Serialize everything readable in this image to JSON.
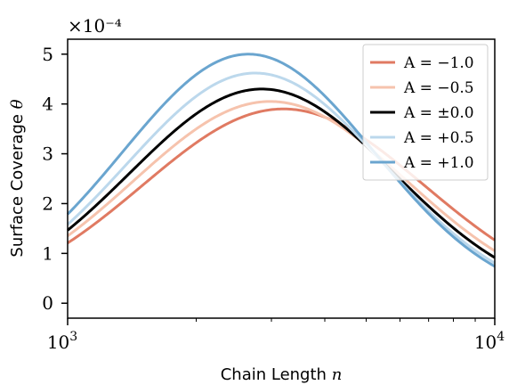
{
  "chart_data": {
    "type": "line",
    "xscale": "log",
    "xlim": [
      1000,
      10000
    ],
    "ylim": [
      -0.3,
      5.3
    ],
    "y_multiplier": "×10⁻⁴",
    "xlabel_text": "Chain Length",
    "xlabel_var": "n",
    "ylabel_text": "Surface Coverage",
    "ylabel_var": "θ",
    "x_ticks": [
      {
        "value": 1000,
        "base": "10",
        "exp": "3"
      },
      {
        "value": 10000,
        "base": "10",
        "exp": "4"
      }
    ],
    "y_ticks": [
      {
        "value": 0,
        "label": "0"
      },
      {
        "value": 1,
        "label": "1"
      },
      {
        "value": 2,
        "label": "2"
      },
      {
        "value": 3,
        "label": "3"
      },
      {
        "value": 4,
        "label": "4"
      },
      {
        "value": 5,
        "label": "5"
      }
    ],
    "legend_position": "top-right",
    "grid": false,
    "series": [
      {
        "name": "A = −1.0",
        "color": "#e07a62",
        "peak_x": 3200,
        "peak_y": 3.9,
        "sigma": 0.33
      },
      {
        "name": "A = −0.5",
        "color": "#f6c3ad",
        "peak_x": 2980,
        "peak_y": 4.05,
        "sigma": 0.32
      },
      {
        "name": "A = ±0.0",
        "color": "#000000",
        "peak_x": 2850,
        "peak_y": 4.3,
        "sigma": 0.31
      },
      {
        "name": "A = +0.5",
        "color": "#bcd8ec",
        "peak_x": 2750,
        "peak_y": 4.62,
        "sigma": 0.3
      },
      {
        "name": "A = +1.0",
        "color": "#6aa5cf",
        "peak_x": 2650,
        "peak_y": 5.0,
        "sigma": 0.295
      }
    ]
  }
}
